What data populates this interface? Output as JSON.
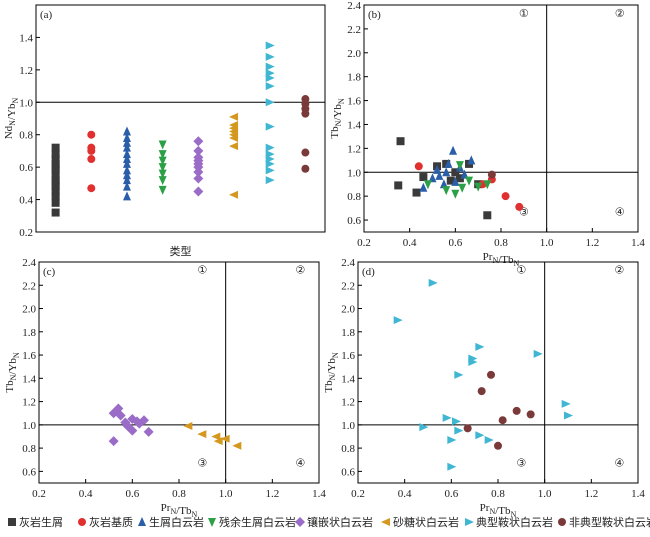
{
  "colors": {
    "limestone_debris": "#3a3a3a",
    "limestone_matrix": "#e03030",
    "bioclastic_dolomite": "#2a5ea8",
    "residual_bioclastic_dolomite": "#2ca047",
    "mosaic_dolomite": "#9a6cc8",
    "sugary_dolomite": "#d4981e",
    "typical_saddle_dolomite": "#3fb6d2",
    "atypical_saddle_dolomite": "#7a3a3a"
  },
  "legend": [
    {
      "key": "limestone_debris",
      "marker": "square",
      "label": "灰岩生屑"
    },
    {
      "key": "limestone_matrix",
      "marker": "circle",
      "label": "灰岩基质"
    },
    {
      "key": "bioclastic_dolomite",
      "marker": "triangle-up",
      "label": "生屑白云岩"
    },
    {
      "key": "residual_bioclastic_dolomite",
      "marker": "triangle-down",
      "label": "残余生屑白云岩"
    },
    {
      "key": "mosaic_dolomite",
      "marker": "diamond",
      "label": "镶嵌状白云岩"
    },
    {
      "key": "sugary_dolomite",
      "marker": "triangle-left",
      "label": "砂糖状白云岩"
    },
    {
      "key": "typical_saddle_dolomite",
      "marker": "triangle-right",
      "label": "典型鞍状白云岩"
    },
    {
      "key": "atypical_saddle_dolomite",
      "marker": "circle",
      "label": "非典型鞍状白云岩"
    }
  ],
  "chart_data": [
    {
      "panel": "(a)",
      "type": "scatter",
      "xlabel": "类型",
      "ylabel": "Nd_N/Yb_N",
      "ylim": [
        0.2,
        1.6
      ],
      "yticks": [
        "0.2",
        "0.4",
        "0.6",
        "0.8",
        "1.0",
        "1.2",
        "1.4"
      ],
      "reference_line_y": 1.0,
      "groups": [
        {
          "key": "limestone_debris",
          "values": [
            0.32,
            0.38,
            0.42,
            0.45,
            0.48,
            0.5,
            0.52,
            0.55,
            0.58,
            0.6,
            0.62,
            0.65,
            0.68,
            0.72
          ]
        },
        {
          "key": "limestone_matrix",
          "values": [
            0.47,
            0.65,
            0.7,
            0.72,
            0.8
          ]
        },
        {
          "key": "bioclastic_dolomite",
          "values": [
            0.42,
            0.48,
            0.52,
            0.55,
            0.58,
            0.62,
            0.65,
            0.68,
            0.72,
            0.75,
            0.78,
            0.82
          ]
        },
        {
          "key": "residual_bioclastic_dolomite",
          "values": [
            0.46,
            0.52,
            0.56,
            0.6,
            0.64,
            0.68,
            0.74
          ]
        },
        {
          "key": "mosaic_dolomite",
          "values": [
            0.45,
            0.53,
            0.57,
            0.6,
            0.62,
            0.64,
            0.66,
            0.7,
            0.76
          ]
        },
        {
          "key": "sugary_dolomite",
          "values": [
            0.43,
            0.73,
            0.78,
            0.8,
            0.82,
            0.84,
            0.86,
            0.91
          ]
        },
        {
          "key": "typical_saddle_dolomite",
          "values": [
            0.52,
            0.58,
            0.62,
            0.65,
            0.68,
            0.72,
            0.85,
            1.0,
            1.1,
            1.15,
            1.18,
            1.22,
            1.28,
            1.35
          ]
        },
        {
          "key": "atypical_saddle_dolomite",
          "values": [
            0.59,
            0.69,
            0.93,
            0.96,
            0.99,
            1.02
          ]
        }
      ]
    },
    {
      "panel": "(b)",
      "type": "scatter",
      "xlabel": "Pr_N/Tb_N",
      "ylabel": "Tb_N/Yb_N",
      "xlim": [
        0.2,
        1.4
      ],
      "ylim": [
        0.5,
        2.4
      ],
      "xticks": [
        "0.2",
        "0.4",
        "0.6",
        "0.8",
        "1.0",
        "1.2",
        "1.4"
      ],
      "yticks": [
        "0.6",
        "0.8",
        "1.0",
        "1.2",
        "1.4",
        "1.6",
        "1.8",
        "2.0",
        "2.2",
        "2.4"
      ],
      "quadrants": [
        "①",
        "②",
        "③",
        "④"
      ],
      "series": [
        {
          "key": "limestone_debris",
          "points": [
            [
              0.36,
              1.26
            ],
            [
              0.35,
              0.89
            ],
            [
              0.43,
              0.83
            ],
            [
              0.46,
              0.96
            ],
            [
              0.52,
              1.05
            ],
            [
              0.56,
              1.07
            ],
            [
              0.6,
              1.0
            ],
            [
              0.62,
              0.95
            ],
            [
              0.66,
              1.07
            ],
            [
              0.7,
              0.9
            ],
            [
              0.74,
              0.64
            ],
            [
              0.58,
              0.93
            ]
          ]
        },
        {
          "key": "limestone_matrix",
          "points": [
            [
              0.44,
              1.05
            ],
            [
              0.72,
              0.9
            ],
            [
              0.76,
              0.94
            ],
            [
              0.82,
              0.8
            ],
            [
              0.88,
              0.71
            ]
          ]
        },
        {
          "key": "bioclastic_dolomite",
          "points": [
            [
              0.46,
              0.87
            ],
            [
              0.5,
              0.95
            ],
            [
              0.52,
              1.02
            ],
            [
              0.55,
              0.9
            ],
            [
              0.57,
              1.07
            ],
            [
              0.59,
              1.18
            ],
            [
              0.6,
              0.92
            ],
            [
              0.62,
              1.04
            ],
            [
              0.64,
              0.98
            ],
            [
              0.67,
              1.1
            ],
            [
              0.53,
              0.97
            ],
            [
              0.56,
              1.0
            ]
          ]
        },
        {
          "key": "residual_bioclastic_dolomite",
          "points": [
            [
              0.48,
              0.9
            ],
            [
              0.56,
              0.85
            ],
            [
              0.6,
              0.82
            ],
            [
              0.63,
              0.87
            ],
            [
              0.66,
              0.93
            ],
            [
              0.7,
              0.88
            ],
            [
              0.74,
              0.9
            ],
            [
              0.62,
              1.06
            ]
          ]
        },
        {
          "key": "atypical_saddle_dolomite",
          "points": [
            [
              0.76,
              0.98
            ]
          ]
        }
      ]
    },
    {
      "panel": "(c)",
      "type": "scatter",
      "xlabel": "Pr_N/Tb_N",
      "ylabel": "Tb_N/Yb_N",
      "xlim": [
        0.2,
        1.4
      ],
      "ylim": [
        0.5,
        2.4
      ],
      "xticks": [
        "0.2",
        "0.4",
        "0.6",
        "0.8",
        "1.0",
        "1.2",
        "1.4"
      ],
      "yticks": [
        "0.6",
        "0.8",
        "1.0",
        "1.2",
        "1.4",
        "1.6",
        "1.8",
        "2.0",
        "2.2",
        "2.4"
      ],
      "quadrants": [
        "①",
        "②",
        "③",
        "④"
      ],
      "series": [
        {
          "key": "mosaic_dolomite",
          "points": [
            [
              0.52,
              1.1
            ],
            [
              0.54,
              1.14
            ],
            [
              0.55,
              1.08
            ],
            [
              0.57,
              1.02
            ],
            [
              0.58,
              0.99
            ],
            [
              0.6,
              1.05
            ],
            [
              0.62,
              1.03
            ],
            [
              0.63,
              1.01
            ],
            [
              0.65,
              1.04
            ],
            [
              0.52,
              0.86
            ],
            [
              0.6,
              0.95
            ],
            [
              0.67,
              0.94
            ]
          ]
        },
        {
          "key": "sugary_dolomite",
          "points": [
            [
              0.84,
              0.99
            ],
            [
              0.9,
              0.92
            ],
            [
              0.96,
              0.9
            ],
            [
              0.97,
              0.86
            ],
            [
              1.0,
              0.88
            ],
            [
              1.05,
              0.82
            ]
          ]
        }
      ]
    },
    {
      "panel": "(d)",
      "type": "scatter",
      "xlabel": "Pr_N/Tb_N",
      "ylabel": "Tb_N/Yb_N",
      "xlim": [
        0.2,
        1.4
      ],
      "ylim": [
        0.5,
        2.4
      ],
      "xticks": [
        "0.2",
        "0.4",
        "0.6",
        "0.8",
        "1.0",
        "1.2",
        "1.4"
      ],
      "yticks": [
        "0.6",
        "0.8",
        "1.0",
        "1.2",
        "1.4",
        "1.6",
        "1.8",
        "2.0",
        "2.2",
        "2.4"
      ],
      "quadrants": [
        "①",
        "②",
        "③",
        "④"
      ],
      "series": [
        {
          "key": "typical_saddle_dolomite",
          "points": [
            [
              0.52,
              2.22
            ],
            [
              0.37,
              1.9
            ],
            [
              0.72,
              1.67
            ],
            [
              0.69,
              1.57
            ],
            [
              0.97,
              1.61
            ],
            [
              0.63,
              1.43
            ],
            [
              0.58,
              1.06
            ],
            [
              0.62,
              1.03
            ],
            [
              0.48,
              0.98
            ],
            [
              0.6,
              0.87
            ],
            [
              0.63,
              0.95
            ],
            [
              0.72,
              0.91
            ],
            [
              0.76,
              0.87
            ],
            [
              1.09,
              1.18
            ],
            [
              1.1,
              1.08
            ],
            [
              0.6,
              0.64
            ],
            [
              0.69,
              1.54
            ]
          ]
        },
        {
          "key": "atypical_saddle_dolomite",
          "points": [
            [
              0.77,
              1.43
            ],
            [
              0.73,
              1.29
            ],
            [
              0.67,
              0.97
            ],
            [
              0.82,
              1.04
            ],
            [
              0.88,
              1.12
            ],
            [
              0.94,
              1.09
            ],
            [
              0.8,
              0.82
            ]
          ]
        }
      ]
    }
  ]
}
